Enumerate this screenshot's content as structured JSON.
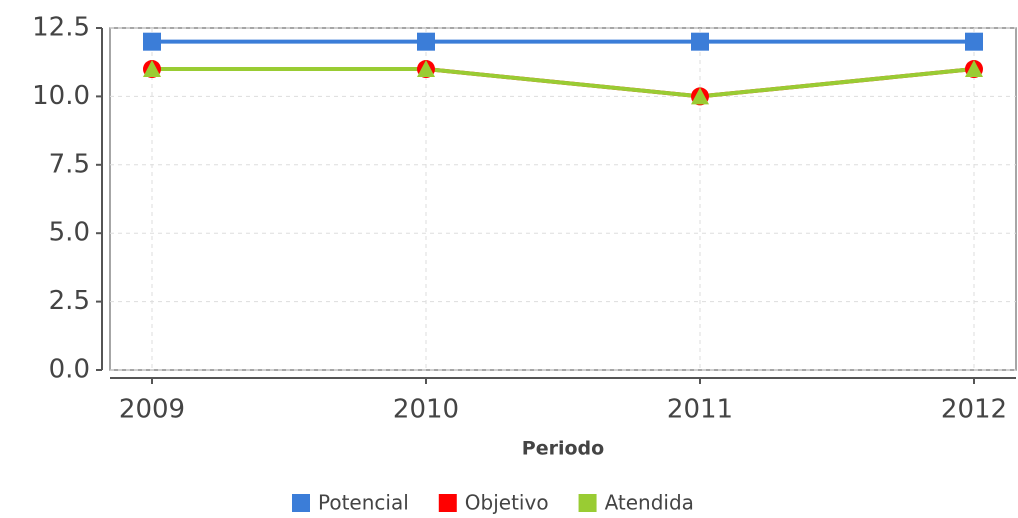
{
  "chart_data": {
    "type": "line",
    "x_label": "Periodo",
    "categories": [
      "2009",
      "2010",
      "2011",
      "2012"
    ],
    "series": [
      {
        "name": "Potencial",
        "color": "#3b7dd8",
        "marker": "square",
        "values": [
          12,
          12,
          12,
          12
        ]
      },
      {
        "name": "Objetivo",
        "color": "#ff0000",
        "marker": "circle",
        "values": [
          11,
          11,
          10,
          11
        ]
      },
      {
        "name": "Atendida",
        "color": "#99cc33",
        "marker": "triangle",
        "values": [
          11,
          11,
          10,
          11
        ]
      }
    ],
    "ylim": [
      0,
      12.5
    ],
    "yticks": [
      {
        "value": 0,
        "label": "0.0"
      },
      2.5,
      {
        "value": 5,
        "label": "5.0"
      },
      7.5,
      {
        "value": 10,
        "label": "10.0"
      },
      12.5
    ],
    "grid": true,
    "legend": "bottom"
  }
}
